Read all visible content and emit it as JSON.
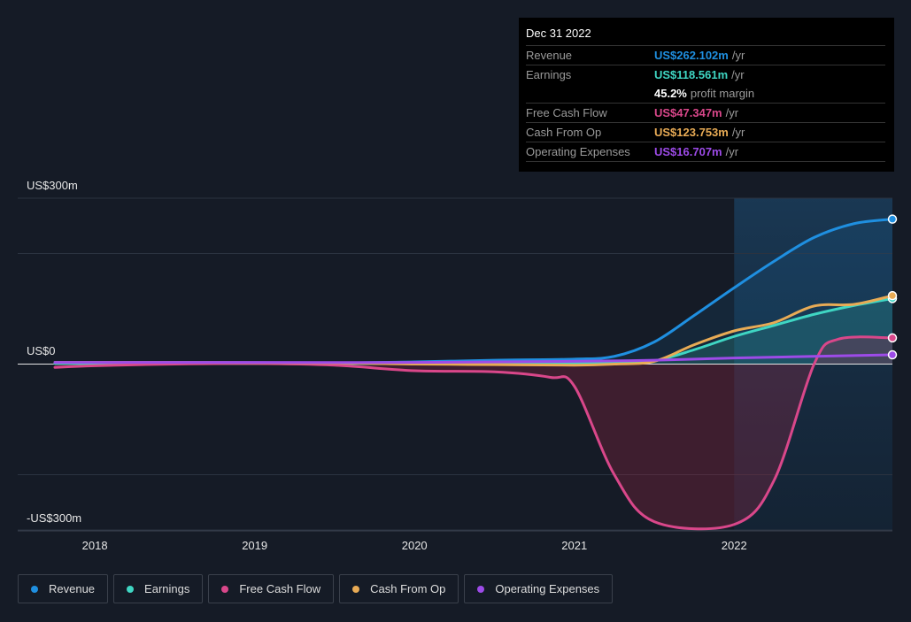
{
  "chart_data": {
    "type": "line",
    "title": "",
    "xlabel": "",
    "ylabel": "",
    "xlim": [
      2017.75,
      2022.99
    ],
    "ylim": [
      -300,
      300
    ],
    "x_ticks": [
      "2018",
      "2019",
      "2020",
      "2021",
      "2022"
    ],
    "y_tick_labels": {
      "top": "US$300m",
      "zero": "US$0",
      "bottom": "-US$300m"
    },
    "highlight_range": [
      2022.0,
      2022.99
    ],
    "legend_placement": "bottom-left",
    "series": [
      {
        "name": "Revenue",
        "color": "#1f8fe0",
        "points": [
          [
            2017.75,
            2
          ],
          [
            2018.5,
            2
          ],
          [
            2019.5,
            2
          ],
          [
            2020,
            4
          ],
          [
            2020.5,
            7
          ],
          [
            2021,
            9
          ],
          [
            2021.25,
            14
          ],
          [
            2021.5,
            40
          ],
          [
            2021.75,
            88
          ],
          [
            2022,
            138
          ],
          [
            2022.25,
            186
          ],
          [
            2022.5,
            229
          ],
          [
            2022.75,
            254
          ],
          [
            2022.99,
            262.102
          ]
        ]
      },
      {
        "name": "Earnings",
        "color": "#3fd6c3",
        "points": [
          [
            2017.75,
            1
          ],
          [
            2018.5,
            1
          ],
          [
            2019.5,
            1
          ],
          [
            2020,
            1
          ],
          [
            2020.5,
            1
          ],
          [
            2021,
            1
          ],
          [
            2021.25,
            2
          ],
          [
            2021.5,
            6
          ],
          [
            2021.75,
            26
          ],
          [
            2022,
            50
          ],
          [
            2022.25,
            70
          ],
          [
            2022.5,
            90
          ],
          [
            2022.75,
            106
          ],
          [
            2022.99,
            118.561
          ]
        ]
      },
      {
        "name": "Free Cash Flow",
        "color": "#d9478a",
        "points": [
          [
            2017.75,
            -6
          ],
          [
            2018,
            -3
          ],
          [
            2018.5,
            0
          ],
          [
            2019,
            1
          ],
          [
            2019.5,
            -2
          ],
          [
            2020,
            -12
          ],
          [
            2020.5,
            -14
          ],
          [
            2020.85,
            -24
          ],
          [
            2021,
            -40
          ],
          [
            2021.25,
            -200
          ],
          [
            2021.5,
            -285
          ],
          [
            2022,
            -290
          ],
          [
            2022.25,
            -210
          ],
          [
            2022.5,
            0
          ],
          [
            2022.65,
            45
          ],
          [
            2022.99,
            47.347
          ]
        ]
      },
      {
        "name": "Cash From Op",
        "color": "#e8ab55",
        "points": [
          [
            2017.75,
            3
          ],
          [
            2018.5,
            3
          ],
          [
            2019.5,
            2
          ],
          [
            2020,
            0
          ],
          [
            2020.5,
            -1
          ],
          [
            2021,
            -2
          ],
          [
            2021.25,
            0
          ],
          [
            2021.5,
            5
          ],
          [
            2021.75,
            35
          ],
          [
            2022,
            60
          ],
          [
            2022.25,
            75
          ],
          [
            2022.5,
            105
          ],
          [
            2022.75,
            108
          ],
          [
            2022.99,
            123.753
          ]
        ]
      },
      {
        "name": "Operating Expenses",
        "color": "#9d4be8",
        "points": [
          [
            2017.75,
            3
          ],
          [
            2019,
            3
          ],
          [
            2020,
            3
          ],
          [
            2021,
            5
          ],
          [
            2021.5,
            7
          ],
          [
            2022,
            11
          ],
          [
            2022.5,
            14
          ],
          [
            2022.99,
            16.707
          ]
        ]
      }
    ]
  },
  "tooltip": {
    "date": "Dec 31 2022",
    "rows": [
      {
        "label": "Revenue",
        "value": "US$262.102m",
        "unit": "/yr",
        "color": "#1f8fe0"
      },
      {
        "label": "Earnings",
        "value": "US$118.561m",
        "unit": "/yr",
        "color": "#3fd6c3"
      },
      {
        "label": "",
        "value": "45.2%",
        "unit": "profit margin",
        "color": "#ffffff"
      },
      {
        "label": "Free Cash Flow",
        "value": "US$47.347m",
        "unit": "/yr",
        "color": "#d9478a"
      },
      {
        "label": "Cash From Op",
        "value": "US$123.753m",
        "unit": "/yr",
        "color": "#e8ab55"
      },
      {
        "label": "Operating Expenses",
        "value": "US$16.707m",
        "unit": "/yr",
        "color": "#9d4be8"
      }
    ]
  },
  "legend": [
    "Revenue",
    "Earnings",
    "Free Cash Flow",
    "Cash From Op",
    "Operating Expenses"
  ]
}
